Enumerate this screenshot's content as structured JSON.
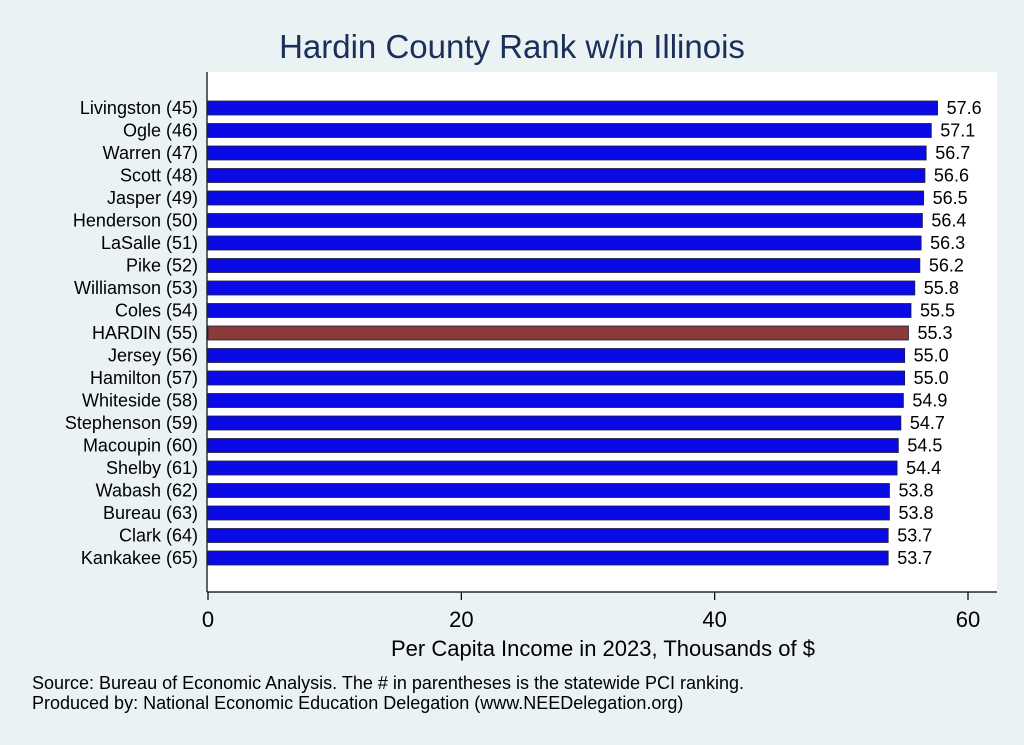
{
  "chart_data": {
    "type": "bar",
    "orientation": "horizontal",
    "title": "Hardin County Rank w/in Illinois",
    "xlabel": "Per Capita Income in 2023, Thousands of $",
    "xlim": [
      0,
      62
    ],
    "xticks": [
      0,
      20,
      40,
      60
    ],
    "grid": false,
    "bar_color": "#0a0ae6",
    "highlight_color": "#8b3a3a",
    "highlight_category": "HARDIN (55)",
    "categories": [
      "Livingston (45)",
      "Ogle (46)",
      "Warren (47)",
      "Scott (48)",
      "Jasper (49)",
      "Henderson (50)",
      "LaSalle (51)",
      "Pike (52)",
      "Williamson (53)",
      "Coles (54)",
      "HARDIN (55)",
      "Jersey (56)",
      "Hamilton (57)",
      "Whiteside (58)",
      "Stephenson (59)",
      "Macoupin (60)",
      "Shelby (61)",
      "Wabash (62)",
      "Bureau (63)",
      "Clark (64)",
      "Kankakee (65)"
    ],
    "values": [
      57.6,
      57.1,
      56.7,
      56.6,
      56.5,
      56.4,
      56.3,
      56.2,
      55.8,
      55.5,
      55.3,
      55.0,
      55.0,
      54.9,
      54.7,
      54.5,
      54.4,
      53.8,
      53.8,
      53.7,
      53.7
    ],
    "value_labels": [
      "57.6",
      "57.1",
      "56.7",
      "56.6",
      "56.5",
      "56.4",
      "56.3",
      "56.2",
      "55.8",
      "55.5",
      "55.3",
      "55.0",
      "55.0",
      "54.9",
      "54.7",
      "54.5",
      "54.4",
      "53.8",
      "53.8",
      "53.7",
      "53.7"
    ]
  },
  "notes": {
    "source": "Source: Bureau of Economic Analysis. The # in parentheses is the statewide PCI ranking.",
    "produced": "Produced by: National Economic Education Delegation (www.NEEDelegation.org)"
  }
}
